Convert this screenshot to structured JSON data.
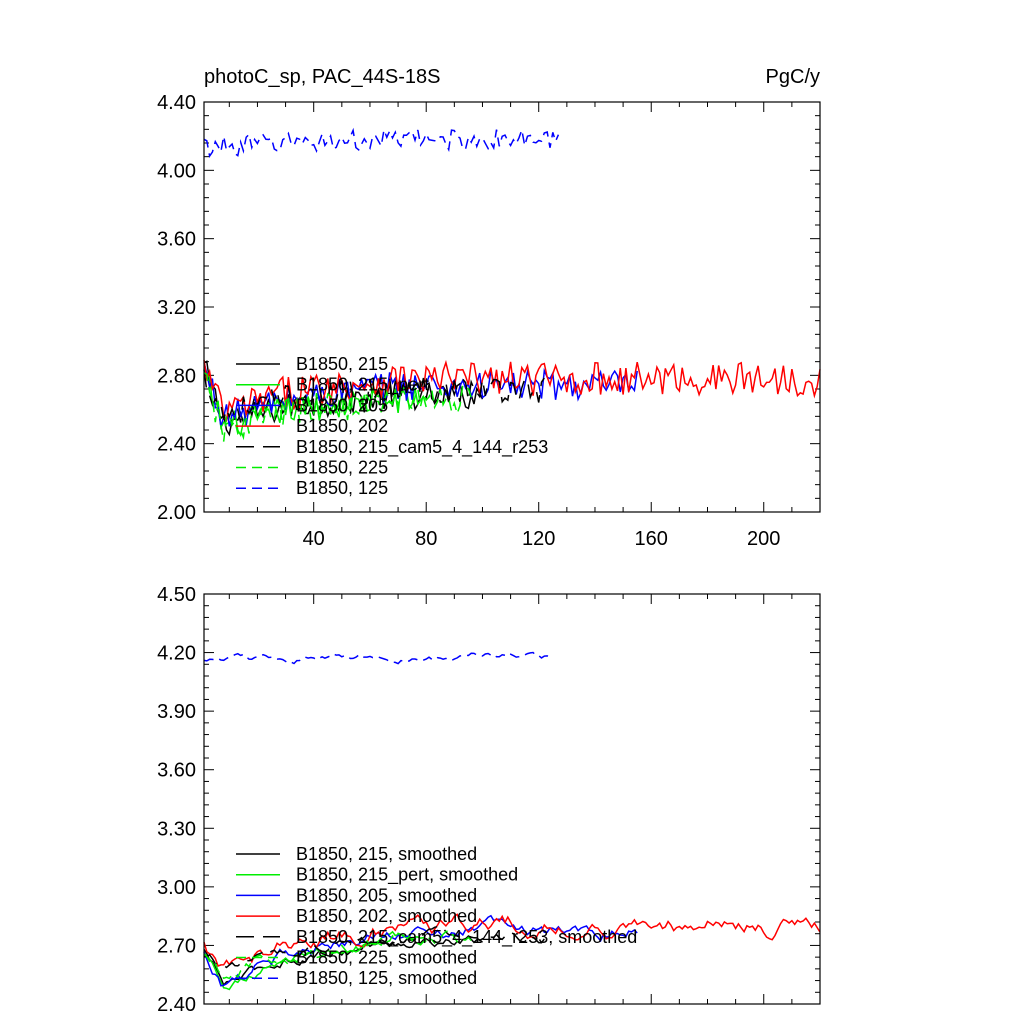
{
  "chart_data": [
    {
      "type": "line",
      "title_left": "photoC_sp, PAC_44S-18S",
      "title_right": "PgC/y",
      "xlim": [
        1,
        220
      ],
      "ylim": [
        2.0,
        4.4
      ],
      "x_ticks": [
        40,
        80,
        120,
        160,
        200
      ],
      "y_ticks": [
        "2.00",
        "2.40",
        "2.80",
        "3.20",
        "3.60",
        "4.00",
        "4.40"
      ],
      "grid": false,
      "legend_position": "lower-left",
      "series": [
        {
          "name": "B1850, 215",
          "color": "#000000",
          "dash": "solid",
          "x_end": 100,
          "level": 2.68,
          "start": 2.9,
          "dip": 2.52,
          "noise": 0.08
        },
        {
          "name": "B1850, 215_pert",
          "color": "#00ee00",
          "dash": "solid",
          "x_end": 80,
          "level": 2.66,
          "start": 2.85,
          "dip": 2.5,
          "noise": 0.08
        },
        {
          "name": "B1850, 205",
          "color": "#0000ff",
          "dash": "solid",
          "x_end": 155,
          "level": 2.74,
          "start": 2.88,
          "dip": 2.55,
          "noise": 0.09
        },
        {
          "name": "B1850, 202",
          "color": "#ff0000",
          "dash": "solid",
          "x_end": 220,
          "level": 2.78,
          "start": 2.88,
          "dip": 2.58,
          "noise": 0.1
        },
        {
          "name": "B1850, 215_cam5_4_144_r253",
          "color": "#000000",
          "dash": "long-dash",
          "x_end": 122,
          "level": 2.72,
          "start": 2.82,
          "dip": 2.58,
          "noise": 0.08
        },
        {
          "name": "B1850, 225",
          "color": "#00ee00",
          "dash": "dash",
          "x_end": 96,
          "level": 2.66,
          "start": 2.8,
          "dip": 2.48,
          "noise": 0.09
        },
        {
          "name": "B1850, 125",
          "color": "#0000ff",
          "dash": "dash",
          "x_end": 127,
          "level": 4.18,
          "start": 4.14,
          "dip": 4.14,
          "noise": 0.06
        }
      ]
    },
    {
      "type": "line",
      "xlim": [
        1,
        220
      ],
      "ylim": [
        2.4,
        4.5
      ],
      "y_ticks": [
        "2.40",
        "2.70",
        "3.00",
        "3.30",
        "3.60",
        "3.90",
        "4.20",
        "4.50"
      ],
      "grid": false,
      "legend_position": "lower-left",
      "series": [
        {
          "name": "B1850, 215, smoothed",
          "color": "#000000",
          "dash": "solid",
          "x_end": 100,
          "level": 2.72,
          "start": 2.7,
          "dip": 2.5,
          "noise": 0.03
        },
        {
          "name": "B1850, 215_pert, smoothed",
          "color": "#00ee00",
          "dash": "solid",
          "x_end": 80,
          "level": 2.72,
          "start": 2.68,
          "dip": 2.52,
          "noise": 0.03
        },
        {
          "name": "B1850, 205, smoothed",
          "color": "#0000ff",
          "dash": "solid",
          "x_end": 155,
          "level": 2.78,
          "start": 2.68,
          "dip": 2.5,
          "noise": 0.04
        },
        {
          "name": "B1850, 202, smoothed",
          "color": "#ff0000",
          "dash": "solid",
          "x_end": 220,
          "level": 2.8,
          "start": 2.72,
          "dip": 2.58,
          "noise": 0.05
        },
        {
          "name": "B1850, 215_cam5_4_144_r253, smoothed",
          "color": "#000000",
          "dash": "long-dash",
          "x_end": 122,
          "level": 2.74,
          "start": 2.64,
          "dip": 2.58,
          "noise": 0.03
        },
        {
          "name": "B1850, 225, smoothed",
          "color": "#00ee00",
          "dash": "dash",
          "x_end": 96,
          "level": 2.74,
          "start": 2.66,
          "dip": 2.52,
          "noise": 0.04
        },
        {
          "name": "B1850, 125, smoothed",
          "color": "#0000ff",
          "dash": "dash",
          "x_end": 124,
          "level": 4.18,
          "start": 4.15,
          "dip": 4.16,
          "noise": 0.02
        }
      ]
    }
  ]
}
